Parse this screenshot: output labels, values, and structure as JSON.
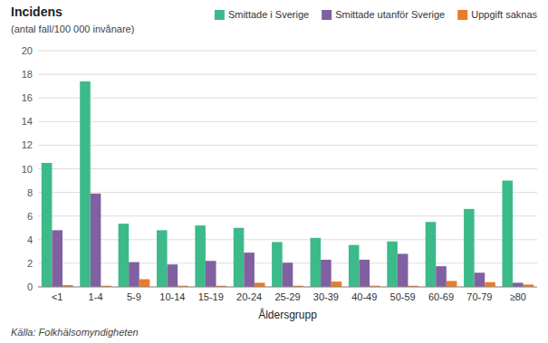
{
  "chart_data": {
    "type": "bar",
    "title": "Incidens",
    "subtitle": "(antal fall/100 000 invånare)",
    "xlabel": "Åldersgrupp",
    "source": "Källa: Folkhälsomyndigheten",
    "categories": [
      "<1",
      "1-4",
      "5-9",
      "10-14",
      "15-19",
      "20-24",
      "25-29",
      "30-39",
      "40-49",
      "50-59",
      "60-69",
      "70-79",
      "≥80"
    ],
    "series": [
      {
        "name": "Smittade i Sverige",
        "color": "#3dba8a",
        "values": [
          10.5,
          17.4,
          5.35,
          4.8,
          5.2,
          5.0,
          3.8,
          4.15,
          3.55,
          3.85,
          5.5,
          6.6,
          9.0
        ]
      },
      {
        "name": "Smittade utanför Sverige",
        "color": "#8060a0",
        "values": [
          4.8,
          7.9,
          2.1,
          1.9,
          2.2,
          2.9,
          2.05,
          2.3,
          2.3,
          2.8,
          1.75,
          1.2,
          0.35
        ]
      },
      {
        "name": "Uppgift saknas",
        "color": "#e87c2a",
        "values": [
          0.15,
          0.1,
          0.65,
          0.1,
          0.1,
          0.35,
          0.1,
          0.45,
          0.1,
          0.1,
          0.5,
          0.4,
          0.2
        ]
      }
    ],
    "ylim": [
      0,
      20
    ],
    "yticks": [
      0,
      2,
      4,
      6,
      8,
      10,
      12,
      14,
      16,
      18,
      20
    ],
    "grid": true,
    "legend": "top"
  }
}
